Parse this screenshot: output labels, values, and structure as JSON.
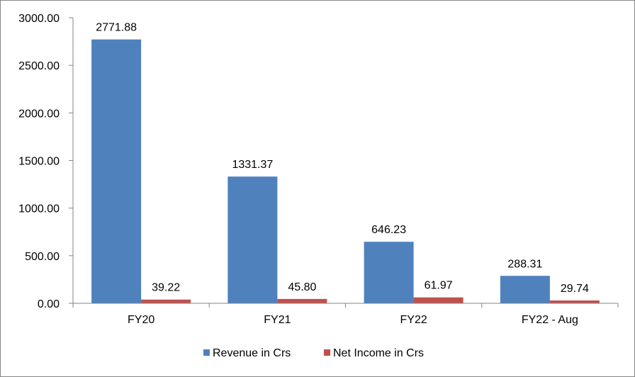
{
  "chart_data": {
    "type": "bar",
    "categories": [
      "FY20",
      "FY21",
      "FY22",
      "FY22 - Aug"
    ],
    "series": [
      {
        "name": "Revenue in Crs",
        "values": [
          2771.88,
          1331.37,
          646.23,
          288.31
        ],
        "color": "#4F81BD"
      },
      {
        "name": "Net Income in Crs",
        "values": [
          39.22,
          45.8,
          61.97,
          29.74
        ],
        "color": "#C0504D"
      }
    ],
    "data_labels": [
      [
        "2771.88",
        "1331.37",
        "646.23",
        "288.31"
      ],
      [
        "39.22",
        "45.80",
        "61.97",
        "29.74"
      ]
    ],
    "yticks": [
      "0.00",
      "500.00",
      "1000.00",
      "1500.00",
      "2000.00",
      "2500.00",
      "3000.00"
    ],
    "ylim": [
      0,
      3000
    ],
    "grid": false,
    "legend_position": "bottom"
  }
}
